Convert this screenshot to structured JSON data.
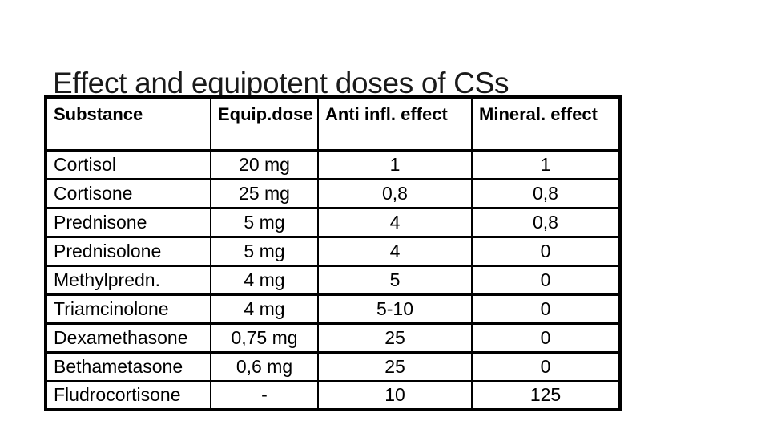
{
  "slide": {
    "title": "Effect and equipotent doses of CSs"
  },
  "table": {
    "columns": [
      "Substance",
      "Equip.dose",
      "Anti infl. effect",
      "Mineral. effect"
    ],
    "rows": [
      [
        "Cortisol",
        "20 mg",
        "1",
        "1"
      ],
      [
        "Cortisone",
        "25 mg",
        "0,8",
        "0,8"
      ],
      [
        "Prednisone",
        "5 mg",
        "4",
        "0,8"
      ],
      [
        "Prednisolone",
        "5 mg",
        "4",
        "0"
      ],
      [
        "Methylpredn.",
        "4 mg",
        "5",
        "0"
      ],
      [
        "Triamcinolone",
        "4 mg",
        "5-10",
        "0"
      ],
      [
        "Dexamethasone",
        "0,75 mg",
        "25",
        "0"
      ],
      [
        "Bethametasone",
        "0,6 mg",
        "25",
        "0"
      ],
      [
        "Fludrocortisone",
        "-",
        "10",
        "125"
      ]
    ]
  },
  "colors": {
    "background": "#ffffff",
    "text": "#000000",
    "title_text": "#1a1a1a",
    "table_border": "#000000"
  }
}
